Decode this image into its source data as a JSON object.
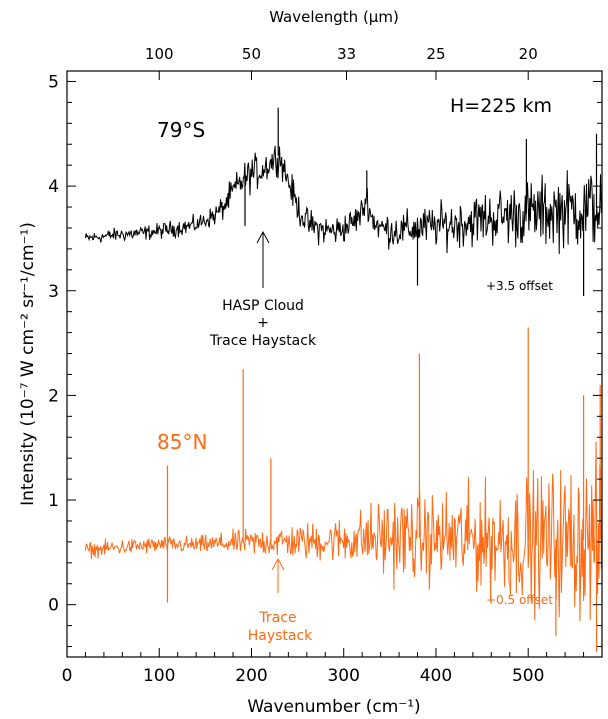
{
  "chart_data": {
    "type": "line",
    "xlabel": "Wavenumber (cm⁻¹)",
    "top_xlabel": "Wavelength (μm)",
    "ylabel": "Intensity (10⁻⁷ W cm⁻² sr⁻¹/cm⁻¹)",
    "xlim": [
      0,
      580
    ],
    "ylim": [
      -0.5,
      5.1
    ],
    "x_ticks": [
      "0",
      "100",
      "200",
      "300",
      "400",
      "500"
    ],
    "y_ticks": [
      "0",
      "1",
      "2",
      "3",
      "4",
      "5"
    ],
    "top_ticks": [
      {
        "label": "100",
        "wavenumber": 100
      },
      {
        "label": "50",
        "wavenumber": 200
      },
      {
        "label": "33",
        "wavenumber": 303
      },
      {
        "label": "25",
        "wavenumber": 400
      },
      {
        "label": "20",
        "wavenumber": 500
      }
    ],
    "annotations": {
      "height": "H=225 km",
      "haystack_s": [
        "HASP Cloud",
        "+",
        "Trace Haystack"
      ],
      "haystack_n": [
        "Trace",
        "Haystack"
      ],
      "offset_s": "+3.5 offset",
      "offset_n": "+0.5 offset"
    },
    "series": [
      {
        "name": "79°S",
        "color": "#000000",
        "offset": 3.5,
        "x": [
          20,
          40,
          60,
          80,
          100,
          120,
          140,
          160,
          170,
          180,
          190,
          200,
          210,
          220,
          230,
          240,
          250,
          260,
          270,
          280,
          290,
          300,
          310,
          320,
          325,
          330,
          340,
          360,
          380,
          400,
          420,
          440,
          460,
          480,
          500,
          520,
          540,
          560,
          580
        ],
        "y": [
          3.5,
          3.52,
          3.54,
          3.55,
          3.57,
          3.6,
          3.63,
          3.72,
          3.8,
          3.95,
          4.05,
          4.12,
          4.15,
          4.22,
          4.3,
          4.05,
          3.8,
          3.65,
          3.6,
          3.58,
          3.57,
          3.6,
          3.65,
          3.75,
          3.9,
          3.7,
          3.6,
          3.57,
          3.6,
          3.62,
          3.64,
          3.67,
          3.7,
          3.72,
          3.74,
          3.75,
          3.77,
          3.78,
          3.8
        ],
        "spikes": [
          [
            193,
            3.62
          ],
          [
            229,
            4.75
          ],
          [
            325,
            4.15
          ],
          [
            380,
            3.05
          ],
          [
            498,
            4.45
          ],
          [
            560,
            2.95
          ],
          [
            574,
            4.5
          ]
        ],
        "noise": [
          [
            20,
            0.04
          ],
          [
            150,
            0.06
          ],
          [
            200,
            0.12
          ],
          [
            250,
            0.1
          ],
          [
            320,
            0.1
          ],
          [
            400,
            0.14
          ],
          [
            500,
            0.22
          ],
          [
            580,
            0.28
          ]
        ]
      },
      {
        "name": "85°N",
        "color": "#ff6a13",
        "offset": 0.5,
        "x": [
          20,
          60,
          100,
          140,
          180,
          220,
          260,
          300,
          340,
          380,
          420,
          460,
          500,
          540,
          580
        ],
        "y": [
          0.52,
          0.55,
          0.57,
          0.57,
          0.59,
          0.6,
          0.6,
          0.62,
          0.64,
          0.64,
          0.63,
          0.62,
          0.62,
          0.62,
          0.62
        ],
        "spikes": [
          [
            109,
            1.33
          ],
          [
            109,
            0.02
          ],
          [
            191,
            2.25
          ],
          [
            221,
            1.4
          ],
          [
            382,
            2.4
          ],
          [
            500,
            2.65
          ],
          [
            530,
            -0.3
          ],
          [
            560,
            2.0
          ],
          [
            574,
            -0.45
          ],
          [
            578,
            2.1
          ]
        ],
        "noise": [
          [
            20,
            0.05
          ],
          [
            150,
            0.06
          ],
          [
            220,
            0.1
          ],
          [
            300,
            0.15
          ],
          [
            350,
            0.28
          ],
          [
            400,
            0.3
          ],
          [
            450,
            0.35
          ],
          [
            500,
            0.42
          ],
          [
            580,
            0.55
          ]
        ]
      }
    ]
  }
}
